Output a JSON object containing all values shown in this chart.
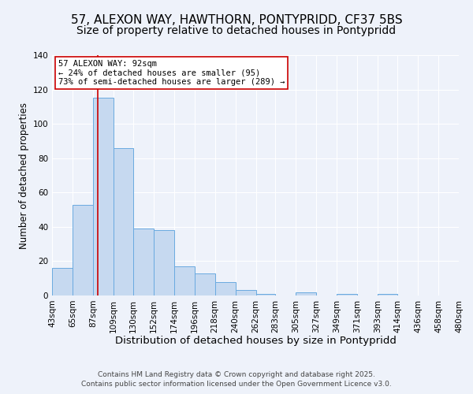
{
  "title": "57, ALEXON WAY, HAWTHORN, PONTYPRIDD, CF37 5BS",
  "subtitle": "Size of property relative to detached houses in Pontypridd",
  "xlabel": "Distribution of detached houses by size in Pontypridd",
  "ylabel": "Number of detached properties",
  "bar_values": [
    16,
    53,
    115,
    86,
    39,
    38,
    17,
    13,
    8,
    3,
    1,
    0,
    2,
    0,
    1,
    0,
    1,
    0,
    0,
    0
  ],
  "bin_edges": [
    43,
    65,
    87,
    109,
    130,
    152,
    174,
    196,
    218,
    240,
    262,
    283,
    305,
    327,
    349,
    371,
    393,
    414,
    436,
    458,
    480
  ],
  "tick_labels": [
    "43sqm",
    "65sqm",
    "87sqm",
    "109sqm",
    "130sqm",
    "152sqm",
    "174sqm",
    "196sqm",
    "218sqm",
    "240sqm",
    "262sqm",
    "283sqm",
    "305sqm",
    "327sqm",
    "349sqm",
    "371sqm",
    "393sqm",
    "414sqm",
    "436sqm",
    "458sqm",
    "480sqm"
  ],
  "bar_color": "#c6d9f0",
  "bar_edge_color": "#6aaae0",
  "vline_x": 92,
  "vline_color": "#cc0000",
  "ylim": [
    0,
    140
  ],
  "yticks": [
    0,
    20,
    40,
    60,
    80,
    100,
    120,
    140
  ],
  "annotation_title": "57 ALEXON WAY: 92sqm",
  "annotation_line1": "← 24% of detached houses are smaller (95)",
  "annotation_line2": "73% of semi-detached houses are larger (289) →",
  "annotation_box_color": "#ffffff",
  "annotation_box_edge": "#cc0000",
  "footer_line1": "Contains HM Land Registry data © Crown copyright and database right 2025.",
  "footer_line2": "Contains public sector information licensed under the Open Government Licence v3.0.",
  "background_color": "#eef2fa",
  "title_fontsize": 11,
  "subtitle_fontsize": 10,
  "xlabel_fontsize": 9.5,
  "ylabel_fontsize": 8.5,
  "tick_fontsize": 7.5,
  "footer_fontsize": 6.5,
  "annotation_fontsize": 7.5
}
